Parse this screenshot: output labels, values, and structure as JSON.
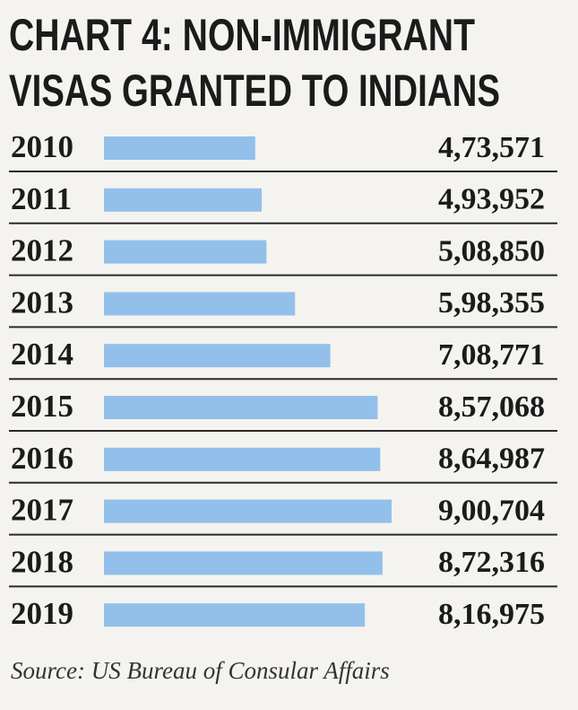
{
  "chart_data": {
    "type": "bar",
    "orientation": "horizontal",
    "title": [
      "CHART 4: NON-IMMIGRANT",
      "VISAS GRANTED TO INDIANS"
    ],
    "categories": [
      "2010",
      "2011",
      "2012",
      "2013",
      "2014",
      "2015",
      "2016",
      "2017",
      "2018",
      "2019"
    ],
    "values": [
      473571,
      493952,
      508850,
      598355,
      708771,
      857068,
      864987,
      900704,
      872316,
      816975
    ],
    "value_labels": [
      "4,73,571",
      "4,93,952",
      "5,08,850",
      "5,98,355",
      "7,08,771",
      "8,57,068",
      "8,64,987",
      "9,00,704",
      "8,72,316",
      "8,16,975"
    ],
    "color": "#92c0ea",
    "source": "Source: US Bureau of Consular Affairs"
  }
}
